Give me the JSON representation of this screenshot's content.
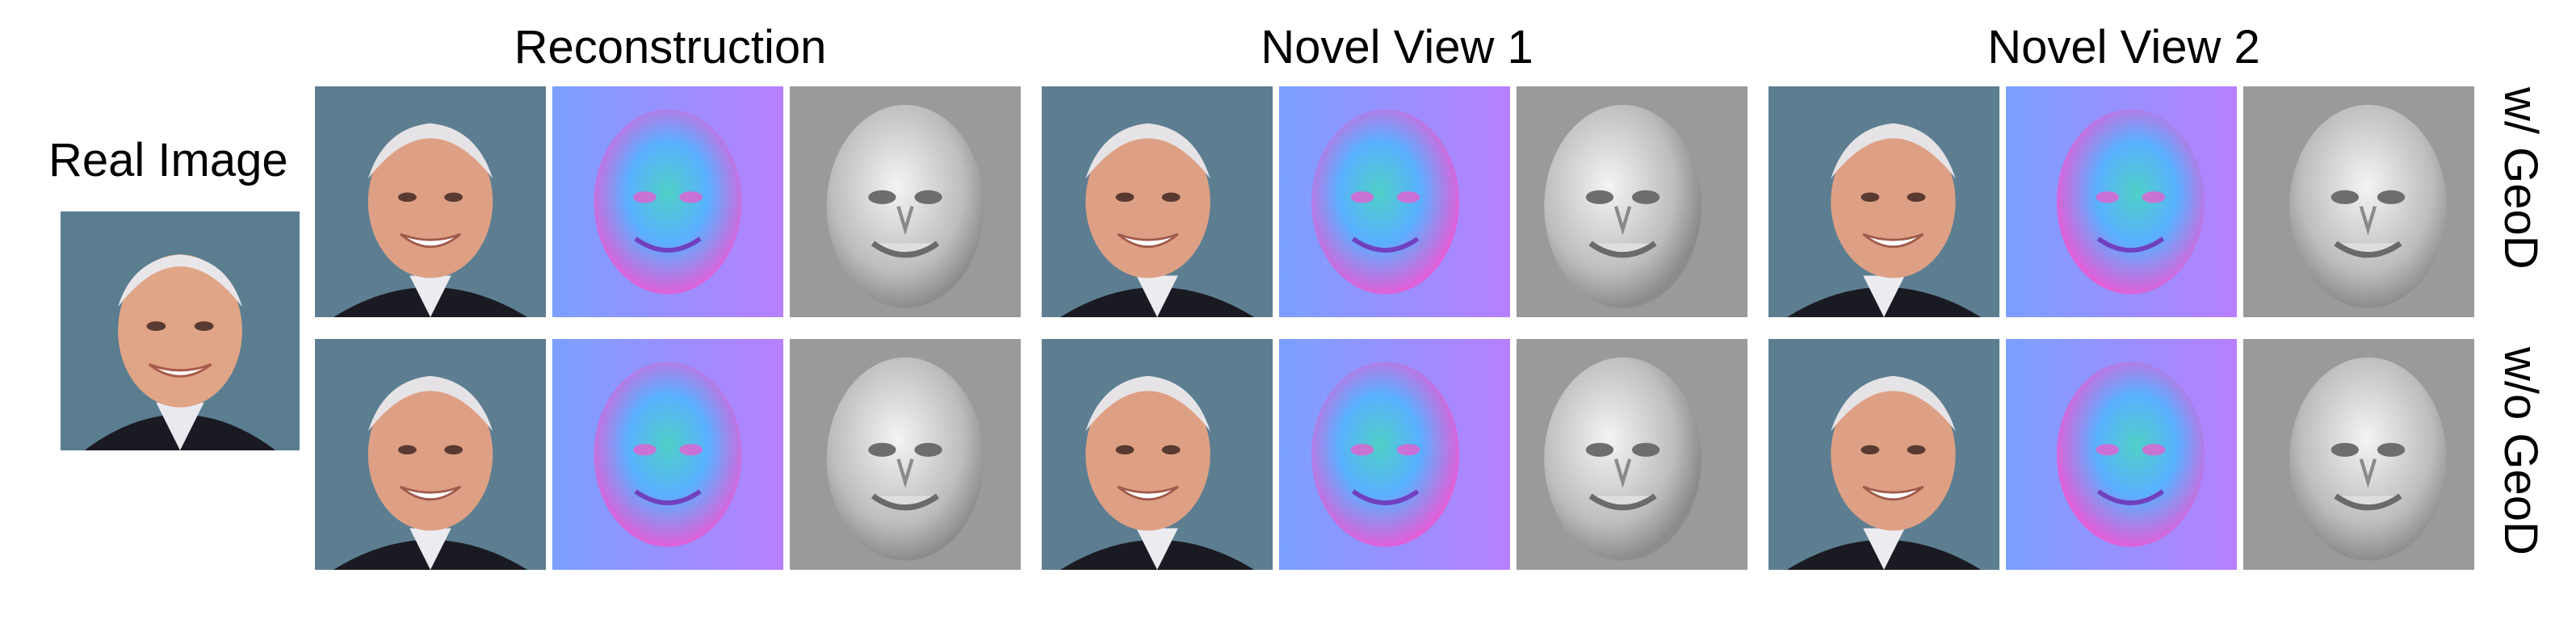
{
  "figure": {
    "real_image_label": "Real Image",
    "columns": [
      {
        "title": "Reconstruction"
      },
      {
        "title": "Novel View 1"
      },
      {
        "title": "Novel View 2"
      }
    ],
    "rows": [
      {
        "label": "w/ GeoD"
      },
      {
        "label": "w/o GeoD"
      }
    ],
    "tile_types": [
      "rgb-face",
      "normal-map",
      "shaded-geometry"
    ]
  }
}
